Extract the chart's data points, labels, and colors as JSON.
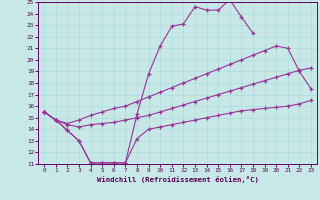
{
  "xlabel": "Windchill (Refroidissement éolien,°C)",
  "xlim": [
    -0.5,
    23.5
  ],
  "ylim": [
    11,
    25
  ],
  "xticks": [
    0,
    1,
    2,
    3,
    4,
    5,
    6,
    7,
    8,
    9,
    10,
    11,
    12,
    13,
    14,
    15,
    16,
    17,
    18,
    19,
    20,
    21,
    22,
    23
  ],
  "yticks": [
    11,
    12,
    13,
    14,
    15,
    16,
    17,
    18,
    19,
    20,
    21,
    22,
    23,
    24,
    25
  ],
  "bg_color": "#c8e8e8",
  "line_color": "#993399",
  "grid_color": "#aadddd",
  "line1_x": [
    0,
    1,
    2,
    3,
    4,
    5,
    6,
    7,
    8,
    9,
    10,
    11,
    12,
    13,
    14,
    15,
    16,
    17,
    18
  ],
  "line1_y": [
    15.5,
    14.8,
    13.9,
    13.0,
    11.1,
    11.1,
    11.1,
    11.1,
    15.3,
    18.8,
    21.2,
    22.9,
    23.1,
    24.6,
    24.3,
    24.3,
    25.2,
    23.7,
    22.3
  ],
  "line2_x": [
    0,
    1,
    2,
    3,
    4,
    5,
    6,
    7,
    8,
    9,
    10,
    11,
    12,
    13,
    14,
    15,
    16,
    17,
    18,
    19,
    20,
    21,
    22,
    23
  ],
  "line2_y": [
    15.5,
    14.8,
    14.5,
    14.8,
    15.2,
    15.5,
    15.8,
    16.0,
    16.4,
    16.8,
    17.2,
    17.6,
    18.0,
    18.4,
    18.8,
    19.2,
    19.6,
    20.0,
    20.4,
    20.8,
    21.2,
    21.0,
    19.0,
    17.5
  ],
  "line3_x": [
    0,
    1,
    2,
    3,
    4,
    5,
    6,
    7,
    8,
    9,
    10,
    11,
    12,
    13,
    14,
    15,
    16,
    17,
    18,
    19,
    20,
    21,
    22,
    23
  ],
  "line3_y": [
    15.5,
    14.8,
    14.4,
    14.2,
    14.4,
    14.5,
    14.6,
    14.8,
    15.0,
    15.2,
    15.5,
    15.8,
    16.1,
    16.4,
    16.7,
    17.0,
    17.3,
    17.6,
    17.9,
    18.2,
    18.5,
    18.8,
    19.1,
    19.3
  ],
  "line4_x": [
    0,
    1,
    2,
    3,
    4,
    5,
    6,
    7,
    8,
    9,
    10,
    11,
    12,
    13,
    14,
    15,
    16,
    17,
    18,
    19,
    20,
    21,
    22,
    23
  ],
  "line4_y": [
    15.5,
    14.8,
    13.9,
    13.0,
    11.1,
    11.1,
    11.1,
    11.1,
    13.2,
    14.0,
    14.2,
    14.4,
    14.6,
    14.8,
    15.0,
    15.2,
    15.4,
    15.6,
    15.7,
    15.8,
    15.9,
    16.0,
    16.2,
    16.5
  ]
}
